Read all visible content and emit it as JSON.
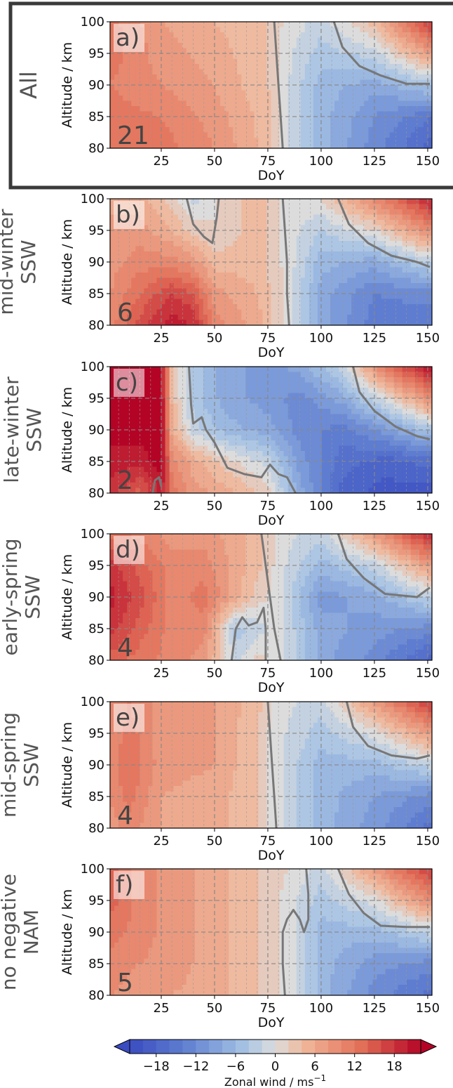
{
  "figure": {
    "x_label": "DoY",
    "y_label": "Altitude / km",
    "colorbar_label_main": "Zonal wind / ms",
    "colorbar_label_sup": "−1"
  },
  "chart_data": [
    {
      "type": "heatmap",
      "panel": "a)",
      "row_label": [
        "All"
      ],
      "count": "21",
      "xlabel": "DoY",
      "ylabel": "Altitude / km",
      "xlim": [
        1,
        152
      ],
      "ylim": [
        80,
        100
      ],
      "x_ticks": [
        25,
        50,
        75,
        100,
        125,
        150
      ],
      "y_ticks": [
        80,
        85,
        90,
        95,
        100
      ],
      "z_nodes": {
        "doy": [
          1,
          25,
          50,
          75,
          82,
          100,
          125,
          152
        ],
        "alt": [
          80,
          85,
          90,
          95,
          100
        ],
        "u": [
          [
            13,
            12,
            9,
            4,
            0,
            -6,
            -12,
            -18
          ],
          [
            12,
            11,
            8,
            4,
            0,
            -6,
            -11,
            -15
          ],
          [
            11,
            9,
            7,
            3,
            0,
            -6,
            -8,
            -4
          ],
          [
            12,
            8,
            6,
            3,
            0,
            -4,
            -2,
            8
          ],
          [
            12,
            7,
            5,
            3,
            1,
            -2,
            4,
            18
          ]
        ]
      },
      "zero_contours": [
        [
          [
            82,
            80
          ],
          [
            81,
            85
          ],
          [
            80,
            90
          ],
          [
            79,
            95
          ],
          [
            78,
            100
          ]
        ],
        [
          [
            106,
            100
          ],
          [
            110,
            96
          ],
          [
            118,
            93
          ],
          [
            128,
            91.5
          ],
          [
            140,
            90.2
          ],
          [
            151,
            90.2
          ]
        ]
      ]
    },
    {
      "type": "heatmap",
      "panel": "b)",
      "row_label": [
        "mid-winter",
        "SSW"
      ],
      "count": "6",
      "xlabel": "DoY",
      "ylabel": "Altitude / km",
      "xlim": [
        1,
        152
      ],
      "ylim": [
        80,
        100
      ],
      "x_ticks": [
        25,
        50,
        75,
        100,
        125,
        150
      ],
      "y_ticks": [
        80,
        85,
        90,
        95,
        100
      ],
      "z_nodes": {
        "doy": [
          1,
          15,
          30,
          40,
          50,
          70,
          85,
          100,
          125,
          152
        ],
        "alt": [
          80,
          85,
          90,
          95,
          100
        ],
        "u": [
          [
            10,
            16,
            20,
            19,
            10,
            6,
            0,
            -8,
            -14,
            -15
          ],
          [
            9,
            13,
            17,
            15,
            8,
            5,
            0,
            -8,
            -13,
            -12
          ],
          [
            8,
            10,
            10,
            8,
            4,
            4,
            0,
            -6,
            -8,
            -2
          ],
          [
            7,
            8,
            5,
            2,
            1,
            4,
            0,
            -3,
            1,
            10
          ],
          [
            7,
            6,
            2,
            -2,
            1,
            4,
            0,
            1,
            10,
            20
          ]
        ]
      },
      "zero_contours": [
        [
          [
            85,
            80
          ],
          [
            84,
            85
          ],
          [
            84,
            90
          ],
          [
            83,
            95
          ],
          [
            82,
            100
          ]
        ],
        [
          [
            37,
            100
          ],
          [
            40,
            96
          ],
          [
            45,
            94
          ],
          [
            49,
            93
          ],
          [
            51,
            97
          ],
          [
            52,
            100
          ]
        ],
        [
          [
            108,
            100
          ],
          [
            113,
            96
          ],
          [
            122,
            93
          ],
          [
            133,
            91
          ],
          [
            145,
            90
          ],
          [
            151,
            89.2
          ]
        ]
      ]
    },
    {
      "type": "heatmap",
      "panel": "c)",
      "row_label": [
        "late-winter",
        "SSW"
      ],
      "count": "2",
      "xlabel": "DoY",
      "ylabel": "Altitude / km",
      "xlim": [
        1,
        152
      ],
      "ylim": [
        80,
        100
      ],
      "x_ticks": [
        25,
        50,
        75,
        100,
        125,
        150
      ],
      "y_ticks": [
        80,
        85,
        90,
        95,
        100
      ],
      "z_nodes": {
        "doy": [
          1,
          15,
          25,
          30,
          40,
          55,
          75,
          90,
          110,
          130,
          152
        ],
        "alt": [
          80,
          85,
          90,
          95,
          100
        ],
        "u": [
          [
            18,
            14,
            20,
            12,
            8,
            6,
            2,
            -8,
            -18,
            -20,
            -20
          ],
          [
            20,
            20,
            22,
            10,
            6,
            2,
            -2,
            -10,
            -16,
            -18,
            -16
          ],
          [
            22,
            22,
            22,
            6,
            -2,
            -6,
            -8,
            -12,
            -14,
            -10,
            -4
          ],
          [
            22,
            22,
            22,
            4,
            -4,
            -8,
            -10,
            -12,
            -8,
            0,
            10
          ],
          [
            22,
            22,
            22,
            4,
            -4,
            -8,
            -10,
            -8,
            -2,
            12,
            22
          ]
        ]
      },
      "zero_contours": [
        [
          [
            38,
            100
          ],
          [
            39,
            94
          ],
          [
            40,
            91
          ],
          [
            44,
            92
          ],
          [
            46,
            90
          ],
          [
            50,
            88
          ],
          [
            53,
            86
          ],
          [
            56,
            84
          ],
          [
            64,
            83
          ],
          [
            72,
            82.5
          ],
          [
            76,
            84.5
          ],
          [
            80,
            83
          ],
          [
            84,
            82.5
          ],
          [
            88,
            80
          ]
        ],
        [
          [
            21,
            80
          ],
          [
            22,
            82
          ],
          [
            24,
            82.5
          ],
          [
            25,
            81
          ]
        ],
        [
          [
            115,
            100
          ],
          [
            118,
            96
          ],
          [
            125,
            93
          ],
          [
            135,
            90.5
          ],
          [
            145,
            89
          ],
          [
            151,
            88.5
          ]
        ]
      ]
    },
    {
      "type": "heatmap",
      "panel": "d)",
      "row_label": [
        "early-spring",
        "SSW"
      ],
      "count": "4",
      "xlabel": "DoY",
      "ylabel": "Altitude / km",
      "xlim": [
        1,
        152
      ],
      "ylim": [
        80,
        100
      ],
      "x_ticks": [
        25,
        50,
        75,
        100,
        125,
        150
      ],
      "y_ticks": [
        80,
        85,
        90,
        95,
        100
      ],
      "z_nodes": {
        "doy": [
          1,
          15,
          30,
          45,
          60,
          70,
          80,
          100,
          125,
          152
        ],
        "alt": [
          80,
          85,
          90,
          95,
          100
        ],
        "u": [
          [
            14,
            12,
            10,
            8,
            -2,
            2,
            0,
            -8,
            -12,
            -18
          ],
          [
            18,
            14,
            10,
            10,
            -4,
            -2,
            0,
            -8,
            -10,
            -12
          ],
          [
            20,
            16,
            10,
            12,
            6,
            2,
            0,
            -10,
            -8,
            -2
          ],
          [
            18,
            14,
            10,
            10,
            6,
            4,
            0,
            -6,
            -2,
            8
          ],
          [
            12,
            10,
            8,
            8,
            6,
            4,
            0,
            -2,
            8,
            20
          ]
        ]
      },
      "zero_contours": [
        [
          [
            81,
            80
          ],
          [
            78,
            85
          ],
          [
            76,
            90
          ],
          [
            74,
            95
          ],
          [
            72,
            100
          ]
        ],
        [
          [
            58,
            80
          ],
          [
            60,
            85
          ],
          [
            63,
            86.8
          ],
          [
            66,
            85.5
          ],
          [
            70,
            86
          ],
          [
            73,
            88.3
          ],
          [
            74,
            85
          ],
          [
            74,
            80
          ]
        ],
        [
          [
            108,
            100
          ],
          [
            112,
            96
          ],
          [
            120,
            93
          ],
          [
            130,
            90.5
          ],
          [
            145,
            90
          ],
          [
            151,
            91.5
          ]
        ]
      ]
    },
    {
      "type": "heatmap",
      "panel": "e)",
      "row_label": [
        "mid-spring",
        "SSW"
      ],
      "count": "4",
      "xlabel": "DoY",
      "ylabel": "Altitude / km",
      "xlim": [
        1,
        152
      ],
      "ylim": [
        80,
        100
      ],
      "x_ticks": [
        25,
        50,
        75,
        100,
        125,
        150
      ],
      "y_ticks": [
        80,
        85,
        90,
        95,
        100
      ],
      "z_nodes": {
        "doy": [
          1,
          10,
          25,
          50,
          70,
          78,
          100,
          125,
          152
        ],
        "alt": [
          80,
          85,
          90,
          95,
          100
        ],
        "u": [
          [
            8,
            10,
            7,
            6,
            3,
            0,
            -6,
            -10,
            -16
          ],
          [
            9,
            12,
            7,
            6,
            3,
            0,
            -6,
            -9,
            -12
          ],
          [
            10,
            13,
            8,
            7,
            3,
            0,
            -6,
            -6,
            -2
          ],
          [
            9,
            12,
            8,
            7,
            3,
            0,
            -4,
            0,
            8
          ],
          [
            9,
            11,
            8,
            7,
            4,
            0,
            -2,
            8,
            18
          ]
        ]
      },
      "zero_contours": [
        [
          [
            79,
            80
          ],
          [
            78,
            85
          ],
          [
            77,
            90
          ],
          [
            76,
            95
          ],
          [
            75,
            100
          ]
        ],
        [
          [
            112,
            100
          ],
          [
            115,
            96
          ],
          [
            122,
            93
          ],
          [
            133,
            91.5
          ],
          [
            145,
            91
          ],
          [
            151,
            91.5
          ]
        ]
      ]
    },
    {
      "type": "heatmap",
      "panel": "f)",
      "row_label": [
        "no negative",
        "NAM"
      ],
      "count": "5",
      "xlabel": "DoY",
      "ylabel": "Altitude / km",
      "xlim": [
        1,
        152
      ],
      "ylim": [
        80,
        100
      ],
      "x_ticks": [
        25,
        50,
        75,
        100,
        125,
        150
      ],
      "y_ticks": [
        80,
        85,
        90,
        95,
        100
      ],
      "z_nodes": {
        "doy": [
          1,
          15,
          30,
          50,
          70,
          85,
          100,
          125,
          152
        ],
        "alt": [
          80,
          85,
          90,
          95,
          100
        ],
        "u": [
          [
            9,
            8,
            7,
            6,
            3,
            0,
            -6,
            -12,
            -16
          ],
          [
            10,
            9,
            8,
            6,
            3,
            0,
            -6,
            -10,
            -12
          ],
          [
            12,
            10,
            8,
            6,
            3,
            0,
            -6,
            -6,
            -2
          ],
          [
            14,
            10,
            8,
            6,
            3,
            0,
            -4,
            0,
            10
          ],
          [
            14,
            10,
            8,
            6,
            3,
            1,
            -2,
            8,
            18
          ]
        ]
      },
      "zero_contours": [
        [
          [
            83,
            80
          ],
          [
            82,
            85
          ],
          [
            82,
            90
          ],
          [
            84,
            92
          ],
          [
            87,
            93.5
          ],
          [
            90,
            92
          ],
          [
            92,
            90
          ],
          [
            94,
            92
          ],
          [
            94,
            96
          ],
          [
            93,
            100
          ]
        ],
        [
          [
            108,
            100
          ],
          [
            113,
            96
          ],
          [
            120,
            93
          ],
          [
            128,
            91
          ],
          [
            140,
            90.8
          ],
          [
            151,
            90.8
          ]
        ]
      ]
    }
  ],
  "colorbar": {
    "min": -22,
    "max": 22,
    "step": 2,
    "ticks": [
      -18,
      -12,
      -6,
      0,
      6,
      12,
      18
    ],
    "tick_labels": [
      "−18",
      "−12",
      "−6",
      "0",
      "6",
      "12",
      "18"
    ],
    "colormap": "RdBu_r",
    "extend": "both"
  },
  "colors": {
    "zero_contour": "#777777",
    "grid_major": "#888888",
    "grid_minor": "#999999",
    "box": "#3a3a3a"
  }
}
